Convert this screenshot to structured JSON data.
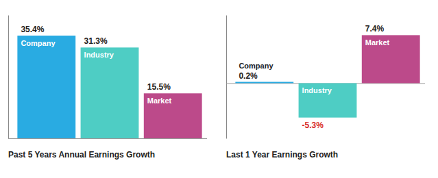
{
  "chart_data": [
    {
      "type": "bar",
      "title": "Past 5 Years Annual Earnings Growth",
      "categories": [
        "Company",
        "Industry",
        "Market"
      ],
      "values": [
        35.4,
        31.3,
        15.5
      ],
      "value_labels": [
        "35.4%",
        "31.3%",
        "15.5%"
      ],
      "colors": [
        "#29abe2",
        "#4ecdc4",
        "#bc4a8a"
      ],
      "ylim": [
        0,
        42.48
      ],
      "yticks": [
        0
      ],
      "data_labels": true,
      "tick_labels": false
    },
    {
      "type": "bar",
      "title": "Last 1 Year Earnings Growth",
      "categories": [
        "Company",
        "Industry",
        "Market"
      ],
      "values": [
        0.2,
        -5.3,
        7.4
      ],
      "value_labels": [
        "0.2%",
        "-5.3%",
        "7.4%"
      ],
      "colors": [
        "#29abe2",
        "#4ecdc4",
        "#bc4a8a"
      ],
      "ylim": [
        -8.5,
        10.5
      ],
      "yticks": [
        0
      ],
      "data_labels": true,
      "tick_labels": false
    }
  ]
}
